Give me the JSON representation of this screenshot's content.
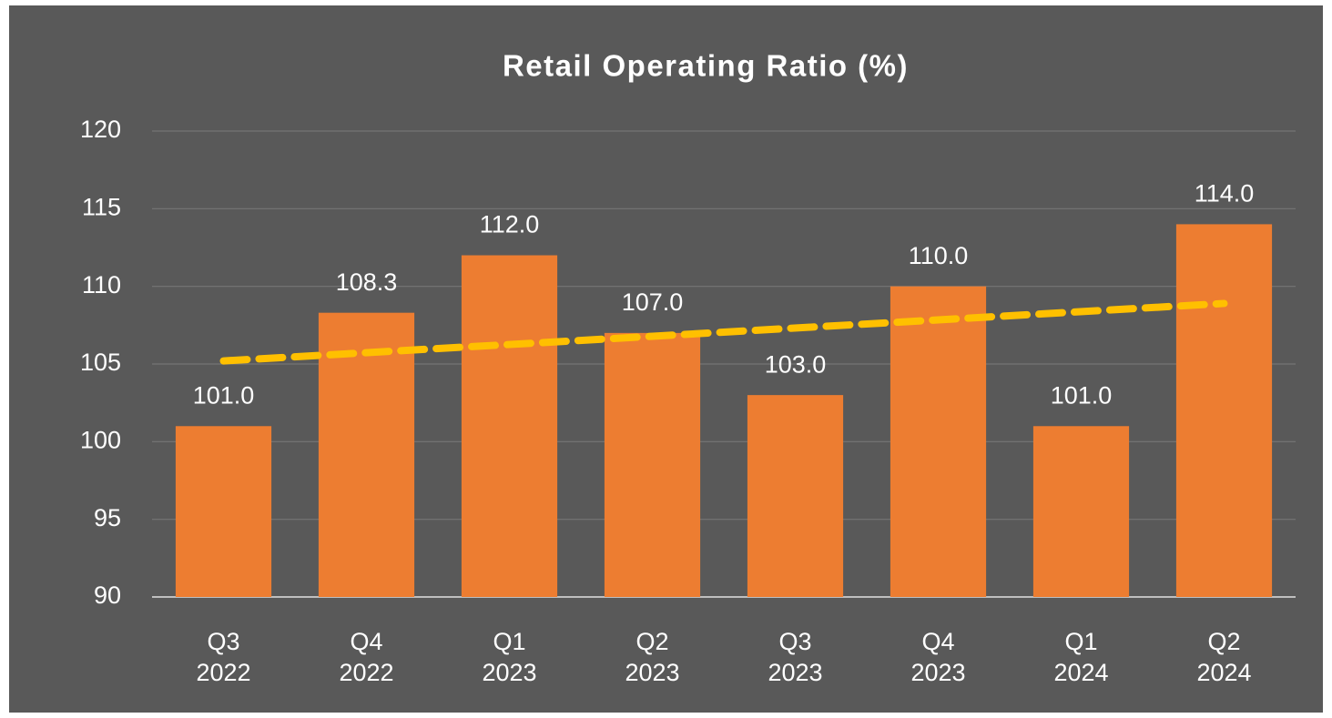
{
  "chart_data": {
    "type": "bar",
    "title": "Retail Operating Ratio (%)",
    "categories": [
      "Q3\n2022",
      "Q4\n2022",
      "Q1\n2023",
      "Q2\n2023",
      "Q3\n2023",
      "Q4\n2023",
      "Q1\n2024",
      "Q2\n2024"
    ],
    "values": [
      101,
      108.3,
      112,
      107,
      103,
      110,
      101,
      114
    ],
    "value_labels": [
      "101.0",
      "108.3",
      "112.0",
      "107.0",
      "103.0",
      "110.0",
      "101.0",
      "114.0"
    ],
    "color": "#ed7d31",
    "trendline": {
      "color": "#ffc000",
      "values": [
        105.2,
        108.9
      ]
    },
    "ylim": [
      90,
      120
    ],
    "yticks": [
      90,
      95,
      100,
      105,
      110,
      115,
      120
    ],
    "grid": true
  }
}
